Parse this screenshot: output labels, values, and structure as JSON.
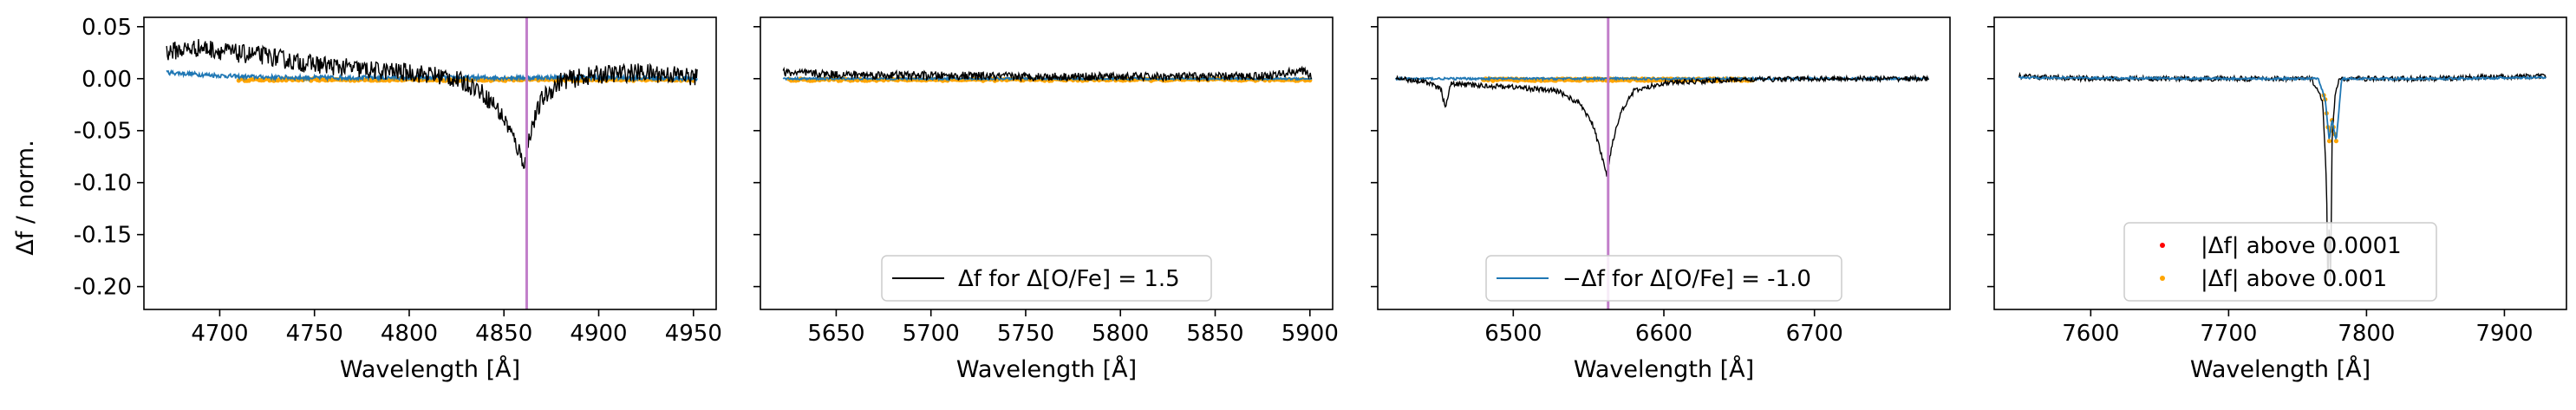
{
  "figure": {
    "ylabel": "Δf / norm.",
    "xlabel": "Wavelength [Å]"
  },
  "chart_data": [
    {
      "type": "line",
      "panel": 1,
      "xlim": [
        4660,
        4962
      ],
      "ylim": [
        -0.222,
        0.059
      ],
      "xticks": [
        4700,
        4750,
        4800,
        4850,
        4900,
        4950
      ],
      "yticks": [
        0.05,
        0.0,
        -0.05,
        -0.1,
        -0.15,
        -0.2
      ],
      "xlabel": "Wavelength [Å]",
      "ylabel": "Δf / norm.",
      "vline": 4862,
      "series": [
        {
          "name": "Δf for Δ[O/Fe] = 1.5",
          "color": "#000000",
          "x": [
            4672,
            4690,
            4710,
            4725,
            4740,
            4760,
            4780,
            4800,
            4820,
            4835,
            4845,
            4852,
            4858,
            4861,
            4864,
            4870,
            4880,
            4900,
            4920,
            4940,
            4952
          ],
          "y": [
            0.026,
            0.03,
            0.024,
            0.022,
            0.016,
            0.012,
            0.008,
            0.006,
            0.002,
            -0.008,
            -0.025,
            -0.045,
            -0.07,
            -0.082,
            -0.05,
            -0.02,
            -0.002,
            0.004,
            0.006,
            0.004,
            0.001
          ],
          "noise": 0.009
        },
        {
          "name": "−Δf for Δ[O/Fe] = -1.0",
          "color": "#1f77b4",
          "x": [
            4672,
            4690,
            4710,
            4740,
            4800,
            4850,
            4900,
            4952
          ],
          "y": [
            0.006,
            0.004,
            0.002,
            0.001,
            0.001,
            0.001,
            0.001,
            0.0
          ],
          "noise": 0.002
        }
      ],
      "orange_band": [
        4710,
        4950
      ]
    },
    {
      "type": "line",
      "panel": 2,
      "xlim": [
        5610,
        5912
      ],
      "ylim": [
        -0.222,
        0.059
      ],
      "xticks": [
        5650,
        5700,
        5750,
        5800,
        5850,
        5900
      ],
      "xlabel": "Wavelength [Å]",
      "series": [
        {
          "name": "Δf for Δ[O/Fe] = 1.5",
          "color": "#000000",
          "x": [
            5622,
            5650,
            5700,
            5750,
            5800,
            5850,
            5880,
            5895,
            5901
          ],
          "y": [
            0.006,
            0.004,
            0.003,
            0.002,
            0.002,
            0.002,
            0.003,
            0.008,
            0.003
          ],
          "noise": 0.004
        },
        {
          "name": "−Δf for Δ[O/Fe] = -1.0",
          "color": "#1f77b4",
          "x": [
            5622,
            5760,
            5901
          ],
          "y": [
            0.0,
            0.0,
            0.0
          ],
          "noise": 0.001
        }
      ],
      "orange_band": [
        5625,
        5900
      ],
      "legend": {
        "entries": [
          "Δf for Δ[O/Fe] = 1.5"
        ],
        "placement": "lower center"
      }
    },
    {
      "type": "line",
      "panel": 3,
      "xlim": [
        4410,
        6790
      ],
      "ylim": [
        -0.222,
        0.059
      ],
      "xlim_note": "",
      "x_axis_limits": [
        6410,
        6790
      ],
      "xticks": [
        6500,
        6600,
        6700
      ],
      "xlabel": "Wavelength [Å]",
      "vline": 6563,
      "series": [
        {
          "name": "Δf for Δ[O/Fe] = 1.5",
          "color": "#000000",
          "x": [
            6422,
            6440,
            6452,
            6455,
            6458,
            6470,
            6500,
            6530,
            6545,
            6553,
            6558,
            6562,
            6566,
            6572,
            6580,
            6600,
            6650,
            6700,
            6740,
            6776
          ],
          "y": [
            0.0,
            -0.002,
            -0.01,
            -0.03,
            -0.005,
            -0.006,
            -0.008,
            -0.012,
            -0.025,
            -0.045,
            -0.07,
            -0.093,
            -0.06,
            -0.03,
            -0.012,
            -0.004,
            -0.001,
            0.0,
            0.0,
            0.0
          ],
          "noise": 0.0025
        },
        {
          "name": "−Δf for Δ[O/Fe] = -1.0",
          "color": "#1f77b4",
          "x": [
            6422,
            6600,
            6776
          ],
          "y": [
            0.0,
            0.0,
            0.0
          ],
          "noise": 0.001
        }
      ],
      "orange_band": [
        6480,
        6660
      ],
      "legend": {
        "entries": [
          "−Δf for Δ[O/Fe] = -1.0"
        ],
        "placement": "lower center"
      }
    },
    {
      "type": "line",
      "panel": 4,
      "xlim": [
        7530,
        7945
      ],
      "ylim": [
        -0.222,
        0.059
      ],
      "xticks": [
        7600,
        7700,
        7800,
        7900
      ],
      "xlabel": "Wavelength [Å]",
      "series": [
        {
          "name": "Δf for Δ[O/Fe] = 1.5",
          "color": "#000000",
          "x": [
            7548,
            7600,
            7700,
            7760,
            7768,
            7771,
            7772,
            7773,
            7774,
            7775,
            7777,
            7780,
            7800,
            7850,
            7900,
            7930
          ],
          "y": [
            0.002,
            0.0,
            0.0,
            0.0,
            -0.02,
            -0.1,
            -0.21,
            -0.13,
            -0.2,
            -0.06,
            -0.02,
            0.0,
            0.0,
            0.0,
            0.002,
            0.002
          ],
          "noise": 0.0025
        },
        {
          "name": "−Δf for Δ[O/Fe] = -1.0",
          "color": "#1f77b4",
          "x": [
            7548,
            7700,
            7765,
            7770,
            7773,
            7775,
            7778,
            7782,
            7850,
            7930
          ],
          "y": [
            0.001,
            0.0,
            0.0,
            -0.02,
            -0.06,
            -0.04,
            -0.06,
            0.0,
            0.0,
            0.001
          ],
          "noise": 0.001
        }
      ],
      "scatter": [
        {
          "name": "|Δf| above 0.0001",
          "color": "#ff0000"
        },
        {
          "name": "|Δf| above 0.001",
          "color": "#ffa500"
        }
      ],
      "legend": {
        "entries": [
          "|Δf| above 0.0001",
          "|Δf| above 0.001"
        ],
        "placement": "lower center"
      }
    }
  ],
  "colors": {
    "black_series": "#000000",
    "blue_series": "#1f77b4",
    "orange_points": "#ffa500",
    "red_points": "#ff0000",
    "vline": "#c27fca"
  }
}
